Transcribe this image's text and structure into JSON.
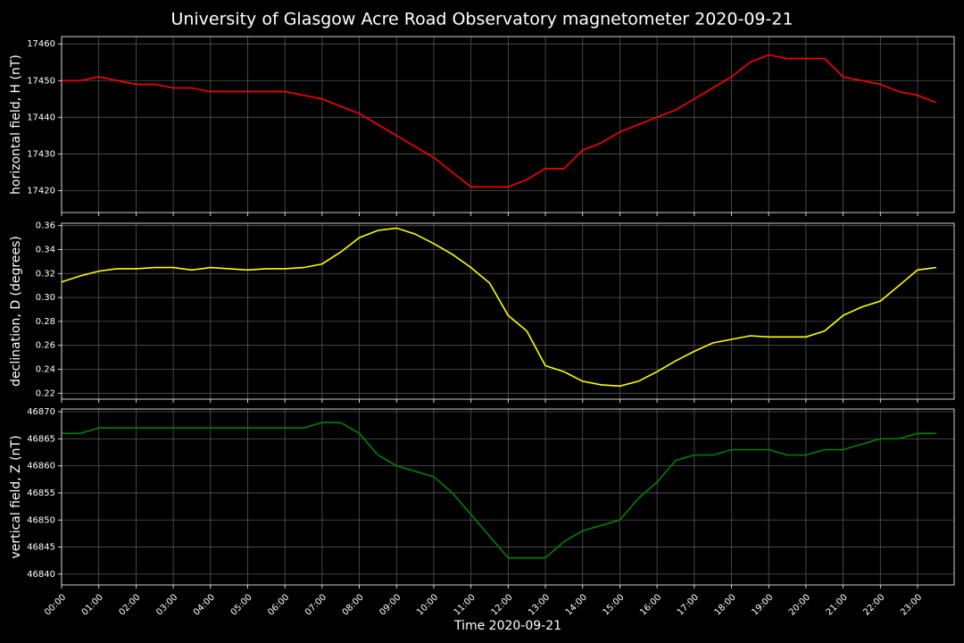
{
  "title": "University of Glasgow Acre Road Observatory magnetometer 2020-09-21",
  "chart_data": [
    {
      "type": "line",
      "ylabel": "horizontal field, H (nT)",
      "color": "#ff0000",
      "grid": true,
      "x": [
        "00:00",
        "00:30",
        "01:00",
        "01:30",
        "02:00",
        "02:30",
        "03:00",
        "03:30",
        "04:00",
        "04:30",
        "05:00",
        "05:30",
        "06:00",
        "06:30",
        "07:00",
        "07:30",
        "08:00",
        "08:30",
        "09:00",
        "09:30",
        "10:00",
        "10:30",
        "11:00",
        "11:30",
        "12:00",
        "12:30",
        "13:00",
        "13:30",
        "14:00",
        "14:30",
        "15:00",
        "15:30",
        "16:00",
        "16:30",
        "17:00",
        "17:30",
        "18:00",
        "18:30",
        "19:00",
        "19:30",
        "20:00",
        "20:30",
        "21:00",
        "21:30",
        "22:00",
        "22:30",
        "23:00",
        "23:30"
      ],
      "values": [
        17450,
        17450,
        17451,
        17450,
        17449,
        17449,
        17448,
        17448,
        17447,
        17447,
        17447,
        17447,
        17447,
        17446,
        17445,
        17443,
        17441,
        17438,
        17435,
        17432,
        17429,
        17425,
        17421,
        17421,
        17421,
        17423,
        17426,
        17426,
        17431,
        17433,
        17436,
        17438,
        17440,
        17442,
        17445,
        17448,
        17451,
        17455,
        17457,
        17456,
        17456,
        17456,
        17451,
        17450,
        17449,
        17447,
        17446,
        17444
      ],
      "ylim": [
        17414,
        17462
      ],
      "yticks": [
        17420,
        17430,
        17440,
        17450,
        17460
      ]
    },
    {
      "type": "line",
      "ylabel": "declination, D (degrees)",
      "color": "#ffff00",
      "grid": true,
      "x": [
        "00:00",
        "00:30",
        "01:00",
        "01:30",
        "02:00",
        "02:30",
        "03:00",
        "03:30",
        "04:00",
        "04:30",
        "05:00",
        "05:30",
        "06:00",
        "06:30",
        "07:00",
        "07:30",
        "08:00",
        "08:30",
        "09:00",
        "09:30",
        "10:00",
        "10:30",
        "11:00",
        "11:30",
        "12:00",
        "12:30",
        "13:00",
        "13:30",
        "14:00",
        "14:30",
        "15:00",
        "15:30",
        "16:00",
        "16:30",
        "17:00",
        "17:30",
        "18:00",
        "18:30",
        "19:00",
        "19:30",
        "20:00",
        "20:30",
        "21:00",
        "21:30",
        "22:00",
        "22:30",
        "23:00",
        "23:30"
      ],
      "values": [
        0.313,
        0.318,
        0.322,
        0.324,
        0.324,
        0.325,
        0.325,
        0.323,
        0.325,
        0.324,
        0.323,
        0.324,
        0.324,
        0.325,
        0.328,
        0.338,
        0.35,
        0.356,
        0.358,
        0.353,
        0.345,
        0.336,
        0.325,
        0.312,
        0.285,
        0.272,
        0.243,
        0.238,
        0.23,
        0.227,
        0.226,
        0.23,
        0.238,
        0.247,
        0.255,
        0.262,
        0.265,
        0.268,
        0.267,
        0.267,
        0.267,
        0.272,
        0.285,
        0.292,
        0.297,
        0.31,
        0.323,
        0.325
      ],
      "ylim": [
        0.215,
        0.362
      ],
      "yticks": [
        0.22,
        0.24,
        0.26,
        0.28,
        {
          "value": 0.3,
          "label": "0.30"
        },
        0.32,
        0.34,
        0.36
      ]
    },
    {
      "type": "line",
      "ylabel": "vertical field, Z (nT)",
      "color": "#008000",
      "grid": true,
      "xlabel": "Time 2020-09-21",
      "x": [
        "00:00",
        "00:30",
        "01:00",
        "01:30",
        "02:00",
        "02:30",
        "03:00",
        "03:30",
        "04:00",
        "04:30",
        "05:00",
        "05:30",
        "06:00",
        "06:30",
        "07:00",
        "07:30",
        "08:00",
        "08:30",
        "09:00",
        "09:30",
        "10:00",
        "10:30",
        "11:00",
        "11:30",
        "12:00",
        "12:30",
        "13:00",
        "13:30",
        "14:00",
        "14:30",
        "15:00",
        "15:30",
        "16:00",
        "16:30",
        "17:00",
        "17:30",
        "18:00",
        "18:30",
        "19:00",
        "19:30",
        "20:00",
        "20:30",
        "21:00",
        "21:30",
        "22:00",
        "22:30",
        "23:00",
        "23:30"
      ],
      "values": [
        46866,
        46866,
        46867,
        46867,
        46867,
        46867,
        46867,
        46867,
        46867,
        46867,
        46867,
        46867,
        46867,
        46867,
        46868,
        46868,
        46866,
        46862,
        46860,
        46859,
        46858,
        46855,
        46851,
        46847,
        46843,
        46843,
        46843,
        46846,
        46848,
        46849,
        46850,
        46854,
        46857,
        46861,
        46862,
        46862,
        46863,
        46863,
        46863,
        46862,
        46862,
        46863,
        46863,
        46864,
        46865,
        46865,
        46866,
        46866
      ],
      "ylim": [
        46838,
        46870.5
      ],
      "yticks": [
        46840,
        46845,
        46850,
        46855,
        46860,
        46865,
        46870
      ],
      "xlim": [
        "00:00",
        "23:59"
      ],
      "xticks": [
        "00:00",
        "01:00",
        "02:00",
        "03:00",
        "04:00",
        "05:00",
        "06:00",
        "07:00",
        "08:00",
        "09:00",
        "10:00",
        "11:00",
        "12:00",
        "13:00",
        "14:00",
        "15:00",
        "16:00",
        "17:00",
        "18:00",
        "19:00",
        "20:00",
        "21:00",
        "22:00",
        "23:00"
      ]
    }
  ]
}
